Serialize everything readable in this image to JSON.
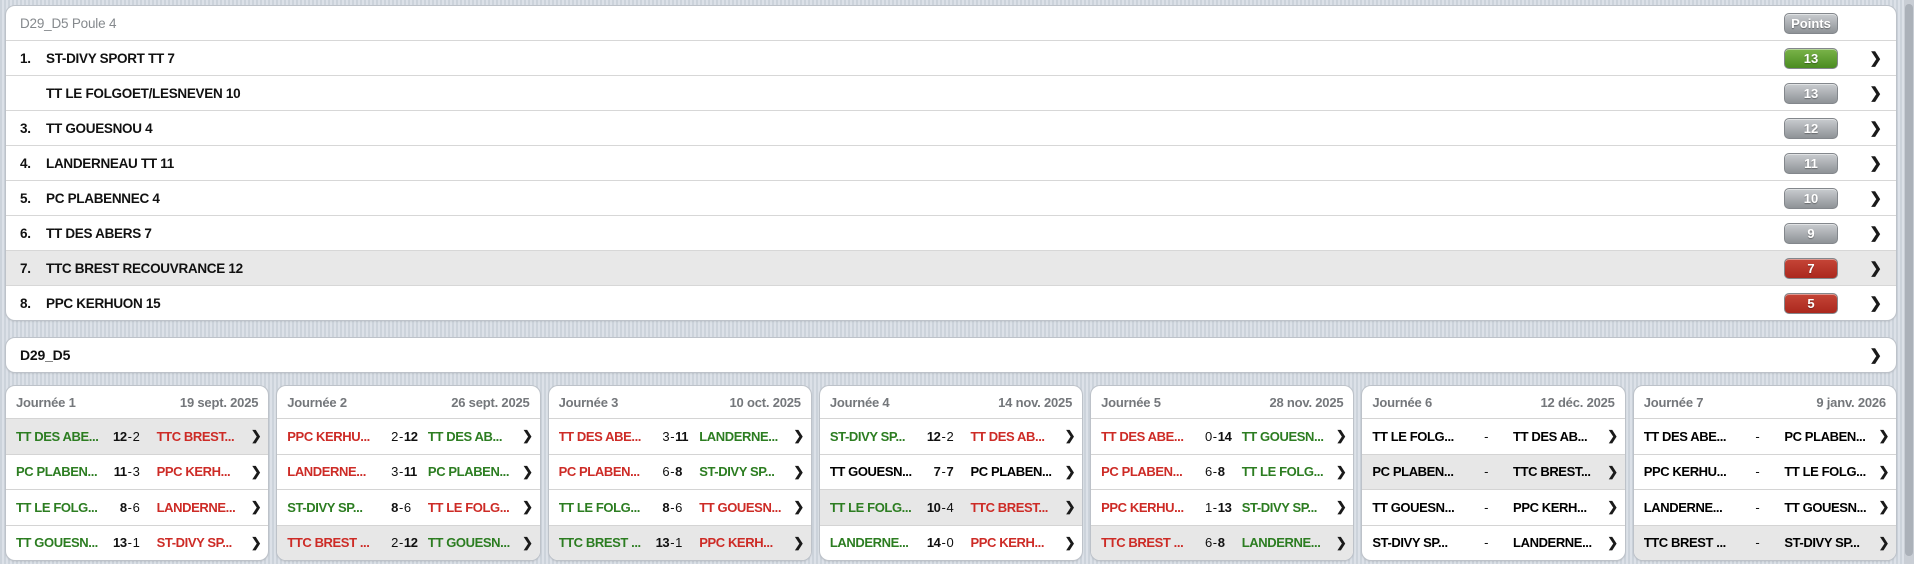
{
  "standings": {
    "title": "D29_D5 Poule 4",
    "points_label": "Points",
    "rows": [
      {
        "rank": "1.",
        "team": "ST-DIVY SPORT TT 7",
        "points": "13",
        "badge": "green",
        "highlighted": false
      },
      {
        "rank": "",
        "team": "TT LE FOLGOET/LESNEVEN 10",
        "points": "13",
        "badge": "gray",
        "highlighted": false
      },
      {
        "rank": "3.",
        "team": "TT GOUESNOU 4",
        "points": "12",
        "badge": "gray",
        "highlighted": false
      },
      {
        "rank": "4.",
        "team": "LANDERNEAU TT 11",
        "points": "11",
        "badge": "gray",
        "highlighted": false
      },
      {
        "rank": "5.",
        "team": "PC PLABENNEC 4",
        "points": "10",
        "badge": "gray",
        "highlighted": false
      },
      {
        "rank": "6.",
        "team": "TT DES ABERS 7",
        "points": "9",
        "badge": "gray",
        "highlighted": false
      },
      {
        "rank": "7.",
        "team": "TTC BREST RECOUVRANCE 12",
        "points": "7",
        "badge": "red",
        "highlighted": true
      },
      {
        "rank": "8.",
        "team": "PPC KERHUON 15",
        "points": "5",
        "badge": "red",
        "highlighted": false
      }
    ]
  },
  "league_row": {
    "label": "D29_D5"
  },
  "journees": [
    {
      "label": "Journée 1",
      "date": "19 sept. 2025",
      "matches": [
        {
          "home": "TT DES ABE...",
          "away": "TTC BREST...",
          "hs": "12",
          "as": "2",
          "result": "home",
          "highlighted": true
        },
        {
          "home": "PC PLABEN...",
          "away": "PPC KERH...",
          "hs": "11",
          "as": "3",
          "result": "home",
          "highlighted": false
        },
        {
          "home": "TT LE FOLG...",
          "away": "LANDERNE...",
          "hs": "8",
          "as": "6",
          "result": "home",
          "highlighted": false
        },
        {
          "home": "TT GOUESN...",
          "away": "ST-DIVY SP...",
          "hs": "13",
          "as": "1",
          "result": "home",
          "highlighted": false
        }
      ]
    },
    {
      "label": "Journée 2",
      "date": "26 sept. 2025",
      "matches": [
        {
          "home": "PPC KERHU...",
          "away": "TT DES AB...",
          "hs": "2",
          "as": "12",
          "result": "away",
          "highlighted": false
        },
        {
          "home": "LANDERNE...",
          "away": "PC PLABEN...",
          "hs": "3",
          "as": "11",
          "result": "away",
          "highlighted": false
        },
        {
          "home": "ST-DIVY SP...",
          "away": "TT LE FOLG...",
          "hs": "8",
          "as": "6",
          "result": "home",
          "highlighted": false
        },
        {
          "home": "TTC BREST ...",
          "away": "TT GOUESN...",
          "hs": "2",
          "as": "12",
          "result": "away",
          "highlighted": true
        }
      ]
    },
    {
      "label": "Journée 3",
      "date": "10 oct. 2025",
      "matches": [
        {
          "home": "TT DES ABE...",
          "away": "LANDERNE...",
          "hs": "3",
          "as": "11",
          "result": "away",
          "highlighted": false
        },
        {
          "home": "PC PLABEN...",
          "away": "ST-DIVY SP...",
          "hs": "6",
          "as": "8",
          "result": "away",
          "highlighted": false
        },
        {
          "home": "TT LE FOLG...",
          "away": "TT GOUESN...",
          "hs": "8",
          "as": "6",
          "result": "home",
          "highlighted": false
        },
        {
          "home": "TTC BREST ...",
          "away": "PPC KERH...",
          "hs": "13",
          "as": "1",
          "result": "home",
          "highlighted": true
        }
      ]
    },
    {
      "label": "Journée 4",
      "date": "14 nov. 2025",
      "matches": [
        {
          "home": "ST-DIVY SP...",
          "away": "TT DES AB...",
          "hs": "12",
          "as": "2",
          "result": "home",
          "highlighted": false
        },
        {
          "home": "TT GOUESN...",
          "away": "PC PLABEN...",
          "hs": "7",
          "as": "7",
          "result": "draw",
          "highlighted": false
        },
        {
          "home": "TT LE FOLG...",
          "away": "TTC BREST...",
          "hs": "10",
          "as": "4",
          "result": "home",
          "highlighted": true
        },
        {
          "home": "LANDERNE...",
          "away": "PPC KERH...",
          "hs": "14",
          "as": "0",
          "result": "home",
          "highlighted": false
        }
      ]
    },
    {
      "label": "Journée 5",
      "date": "28 nov. 2025",
      "matches": [
        {
          "home": "TT DES ABE...",
          "away": "TT GOUESN...",
          "hs": "0",
          "as": "14",
          "result": "away",
          "highlighted": false
        },
        {
          "home": "PC PLABEN...",
          "away": "TT LE FOLG...",
          "hs": "6",
          "as": "8",
          "result": "away",
          "highlighted": false
        },
        {
          "home": "PPC KERHU...",
          "away": "ST-DIVY SP...",
          "hs": "1",
          "as": "13",
          "result": "away",
          "highlighted": false
        },
        {
          "home": "TTC BREST ...",
          "away": "LANDERNE...",
          "hs": "6",
          "as": "8",
          "result": "away",
          "highlighted": true
        }
      ]
    },
    {
      "label": "Journée 6",
      "date": "12 déc. 2025",
      "matches": [
        {
          "home": "TT LE FOLG...",
          "away": "TT DES AB...",
          "hs": "",
          "as": "",
          "result": null,
          "highlighted": false
        },
        {
          "home": "PC PLABEN...",
          "away": "TTC BREST...",
          "hs": "",
          "as": "",
          "result": null,
          "highlighted": true
        },
        {
          "home": "TT GOUESN...",
          "away": "PPC KERH...",
          "hs": "",
          "as": "",
          "result": null,
          "highlighted": false
        },
        {
          "home": "ST-DIVY SP...",
          "away": "LANDERNE...",
          "hs": "",
          "as": "",
          "result": null,
          "highlighted": false
        }
      ]
    },
    {
      "label": "Journée 7",
      "date": "9 janv. 2026",
      "matches": [
        {
          "home": "TT DES ABE...",
          "away": "PC PLABEN...",
          "hs": "",
          "as": "",
          "result": null,
          "highlighted": false
        },
        {
          "home": "PPC KERHU...",
          "away": "TT LE FOLG...",
          "hs": "",
          "as": "",
          "result": null,
          "highlighted": false
        },
        {
          "home": "LANDERNE...",
          "away": "TT GOUESN...",
          "hs": "",
          "as": "",
          "result": null,
          "highlighted": false
        },
        {
          "home": "TTC BREST ...",
          "away": "ST-DIVY SP...",
          "hs": "",
          "as": "",
          "result": null,
          "highlighted": true
        }
      ]
    }
  ],
  "icons": {
    "chevron": "❯"
  },
  "score_separator": "-",
  "colors": {
    "win_text": "#2c7d21",
    "loss_text": "#cd2b26",
    "badge_green": "#4a8c21",
    "badge_red": "#ab281e",
    "badge_gray": "#8e9296",
    "row_highlight": "#e8e8e8"
  }
}
